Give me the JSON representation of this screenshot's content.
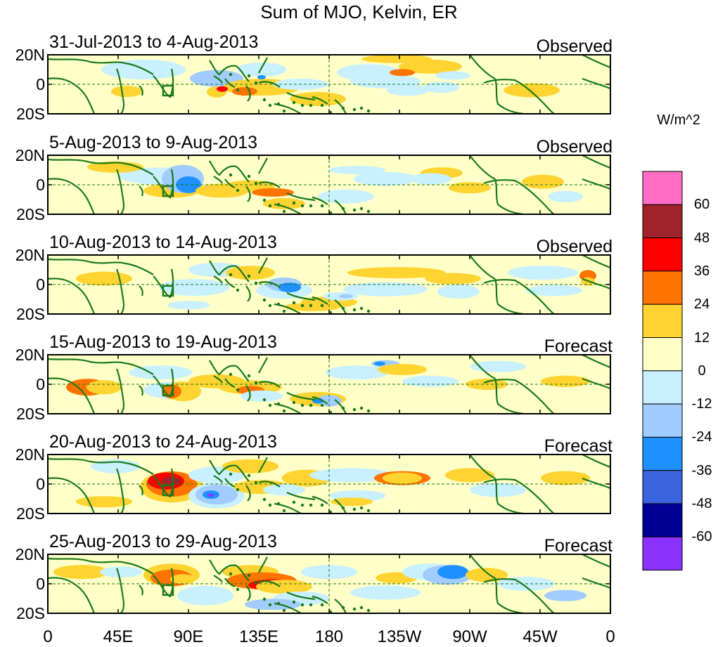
{
  "title": "Sum of MJO, Kelvin, ER",
  "panels": [
    {
      "date_range": "31-Jul-2013 to 4-Aug-2013",
      "status": "Observed"
    },
    {
      "date_range": "5-Aug-2013 to 9-Aug-2013",
      "status": "Observed"
    },
    {
      "date_range": "10-Aug-2013 to 14-Aug-2013",
      "status": "Observed"
    },
    {
      "date_range": "15-Aug-2013 to 19-Aug-2013",
      "status": "Forecast"
    },
    {
      "date_range": "20-Aug-2013 to 24-Aug-2013",
      "status": "Forecast"
    },
    {
      "date_range": "25-Aug-2013 to 29-Aug-2013",
      "status": "Forecast"
    }
  ],
  "lat_labels": [
    "20N",
    "0",
    "20S"
  ],
  "lon_labels": [
    "0",
    "45E",
    "90E",
    "135E",
    "180",
    "135W",
    "90W",
    "45W",
    "0"
  ],
  "colorbar": {
    "units": "W/m^2",
    "labels": [
      "60",
      "48",
      "36",
      "24",
      "12",
      "0",
      "-12",
      "-24",
      "-36",
      "-48",
      "-60"
    ],
    "colors": [
      "#ff6ec4",
      "#a0222a",
      "#ff0000",
      "#ff7300",
      "#ffd431",
      "#ffffc8",
      "#c8f0ff",
      "#a0ccff",
      "#1e90ff",
      "#3c64dc",
      "#000096",
      "#8c32ff"
    ]
  },
  "colors": {
    "land": "#1a7a1a",
    "panel_bg": "#ffffc8"
  }
}
